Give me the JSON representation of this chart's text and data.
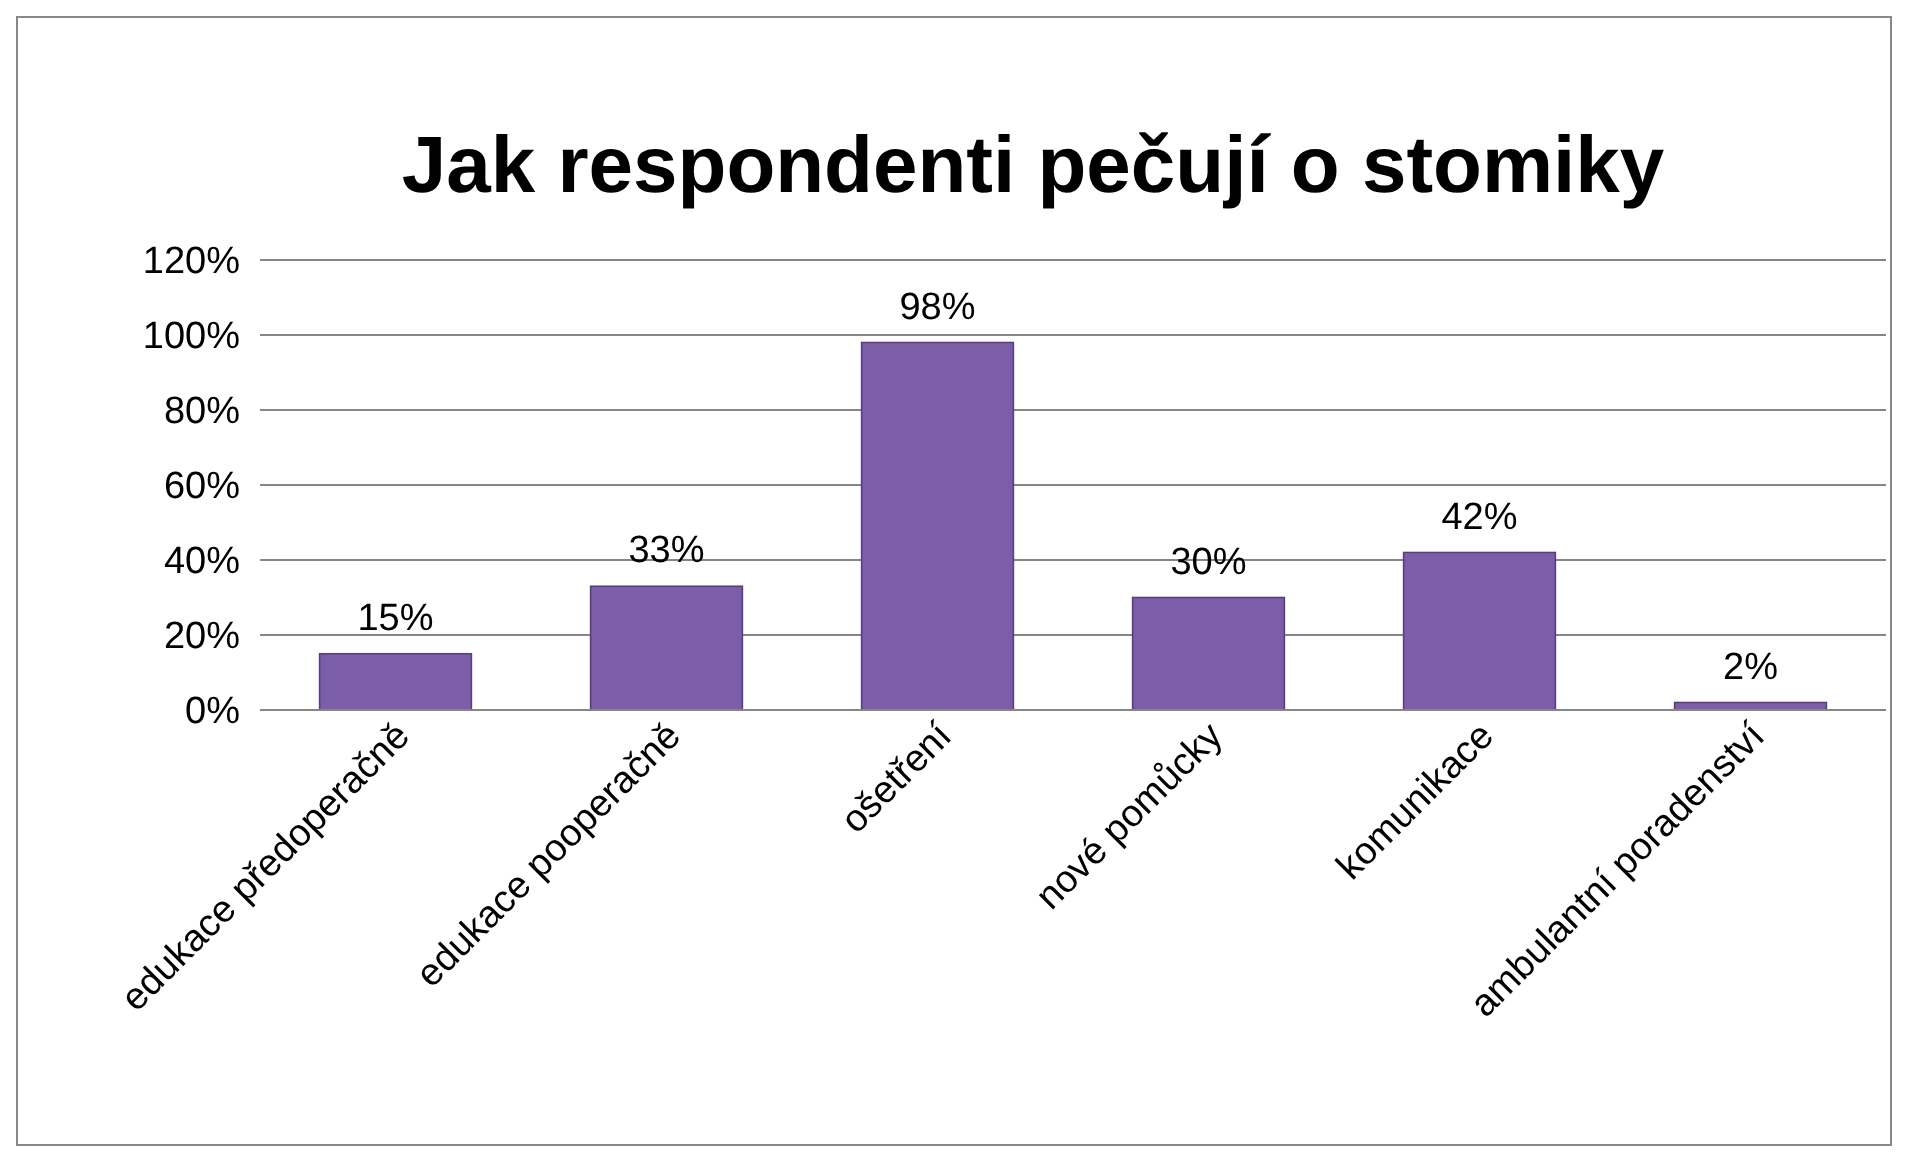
{
  "chart_data": {
    "type": "bar",
    "title": "Jak respondenti pečují o stomiky",
    "categories": [
      "edukace předoperačně",
      "edukace pooperačně",
      "ošetření",
      "nové pomůcky",
      "komunikace",
      "ambulantní poradenství"
    ],
    "values": [
      15,
      33,
      98,
      30,
      42,
      2
    ],
    "value_labels": [
      "15%",
      "33%",
      "98%",
      "30%",
      "42%",
      "2%"
    ],
    "color": "#7b5ea7",
    "ylim": [
      0,
      120
    ],
    "yticks": [
      {
        "value": 0,
        "label": "0%"
      },
      {
        "value": 20,
        "label": "20%"
      },
      {
        "value": 40,
        "label": "40%"
      },
      {
        "value": 60,
        "label": "60%"
      },
      {
        "value": 80,
        "label": "80%"
      },
      {
        "value": 100,
        "label": "100%"
      },
      {
        "value": 120,
        "label": "120%"
      }
    ],
    "grid": "y"
  }
}
